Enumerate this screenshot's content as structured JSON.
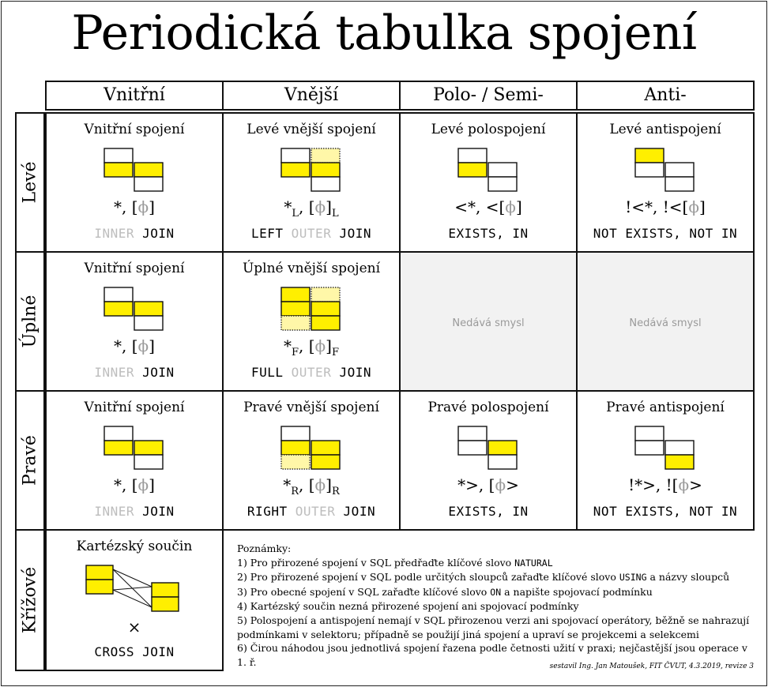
{
  "title": "Periodická tabulka spojení",
  "columns": [
    "Vnitřní",
    "Vnější",
    "Polo- / Semi-",
    "Anti-"
  ],
  "rows": [
    "Levé",
    "Úplné",
    "Pravé",
    "Křížové"
  ],
  "cells": {
    "left_inner": {
      "title": "Vnitřní spojení",
      "alg_a": "*",
      "alg_phi": "ϕ",
      "sql_kw1": "INNER",
      "sql_kw2": "JOIN"
    },
    "left_outer": {
      "title": "Levé vnější spojení",
      "alg_a": "*",
      "alg_phi": "ϕ",
      "sub": "L",
      "sql_kw1": "LEFT",
      "sql_dim": "OUTER",
      "sql_kw2": "JOIN"
    },
    "left_semi": {
      "title": "Levé polospojení",
      "alg_a": "<*",
      "alg_b": "<",
      "alg_phi": "ϕ",
      "sql": "EXISTS, IN"
    },
    "left_anti": {
      "title": "Levé antispojení",
      "alg_a": "!<*",
      "alg_b": "!<",
      "alg_phi": "ϕ",
      "sql": "NOT EXISTS, NOT IN"
    },
    "full_inner": {
      "title": "Vnitřní spojení",
      "alg_a": "*",
      "alg_phi": "ϕ",
      "sql_kw1": "INNER",
      "sql_kw2": "JOIN"
    },
    "full_outer": {
      "title": "Úplné vnější spojení",
      "alg_a": "*",
      "alg_phi": "ϕ",
      "sub": "F",
      "sql_kw1": "FULL",
      "sql_dim": "OUTER",
      "sql_kw2": "JOIN"
    },
    "full_semi": {
      "text": "Nedává smysl"
    },
    "full_anti": {
      "text": "Nedává smysl"
    },
    "right_inner": {
      "title": "Vnitřní spojení",
      "alg_a": "*",
      "alg_phi": "ϕ",
      "sql_kw1": "INNER",
      "sql_kw2": "JOIN"
    },
    "right_outer": {
      "title": "Pravé vnější spojení",
      "alg_a": "*",
      "alg_phi": "ϕ",
      "sub": "R",
      "sql_kw1": "RIGHT",
      "sql_dim": "OUTER",
      "sql_kw2": "JOIN"
    },
    "right_semi": {
      "title": "Pravé polospojení",
      "alg_a": "*>",
      "alg_phi": "ϕ",
      "alg_c": ">",
      "sql": "EXISTS, IN"
    },
    "right_anti": {
      "title": "Pravé antispojení",
      "alg_a": "!*>",
      "alg_b": "!",
      "alg_phi": "ϕ",
      "alg_c": ">",
      "sql": "NOT EXISTS, NOT IN"
    },
    "cross": {
      "title": "Kartézský součin",
      "symbol": "×",
      "sql": "CROSS JOIN"
    }
  },
  "notes": {
    "heading": "Poznámky:",
    "n1_pre": "1) Pro přirozené spojení v SQL předřaďte klíčové slovo ",
    "n1_kw": "NATURAL",
    "n2_pre": "2) Pro přirozené spojení v SQL podle určitých sloupců zařaďte klíčové slovo ",
    "n2_kw": "USING",
    "n2_post": " a názvy sloupců",
    "n3_pre": "3) Pro obecné spojení v SQL zařaďte klíčové slovo ",
    "n3_kw": "ON",
    "n3_post": " a napište spojovací podmínku",
    "n4": "4) Kartézský součin nezná přirozené spojení ani spojovací podmínky",
    "n5a": "5) Polospojení a antispojení nemají v SQL přirozenou verzi ani spojovací operátory, běžně se nahrazují",
    "n5b": "podmínkami v selektoru; případně se použijí jiná spojení a upraví se projekcemi a selekcemi",
    "n6": "6) Čirou náhodou jsou jednotlivá spojení řazena podle četnosti užití v praxi; nejčastější jsou operace v 1. ř."
  },
  "footer": "sestavil Ing. Jan Matoušek, FIT ČVUT, 4.3.2019, revize 3",
  "colors": {
    "yellow": "#ffef00",
    "pale_yellow": "#fff7a8",
    "grey_cell": "#f2f2f2",
    "dim_text": "#bdbdbd"
  },
  "diagram_kinds": {
    "left_inner": "inner",
    "left_outer": "left-outer",
    "left_semi": "left-semi",
    "left_anti": "left-anti",
    "full_inner": "inner",
    "full_outer": "full-outer",
    "right_inner": "inner",
    "right_outer": "right-outer",
    "right_semi": "right-semi",
    "right_anti": "right-anti",
    "cross": "cross"
  }
}
